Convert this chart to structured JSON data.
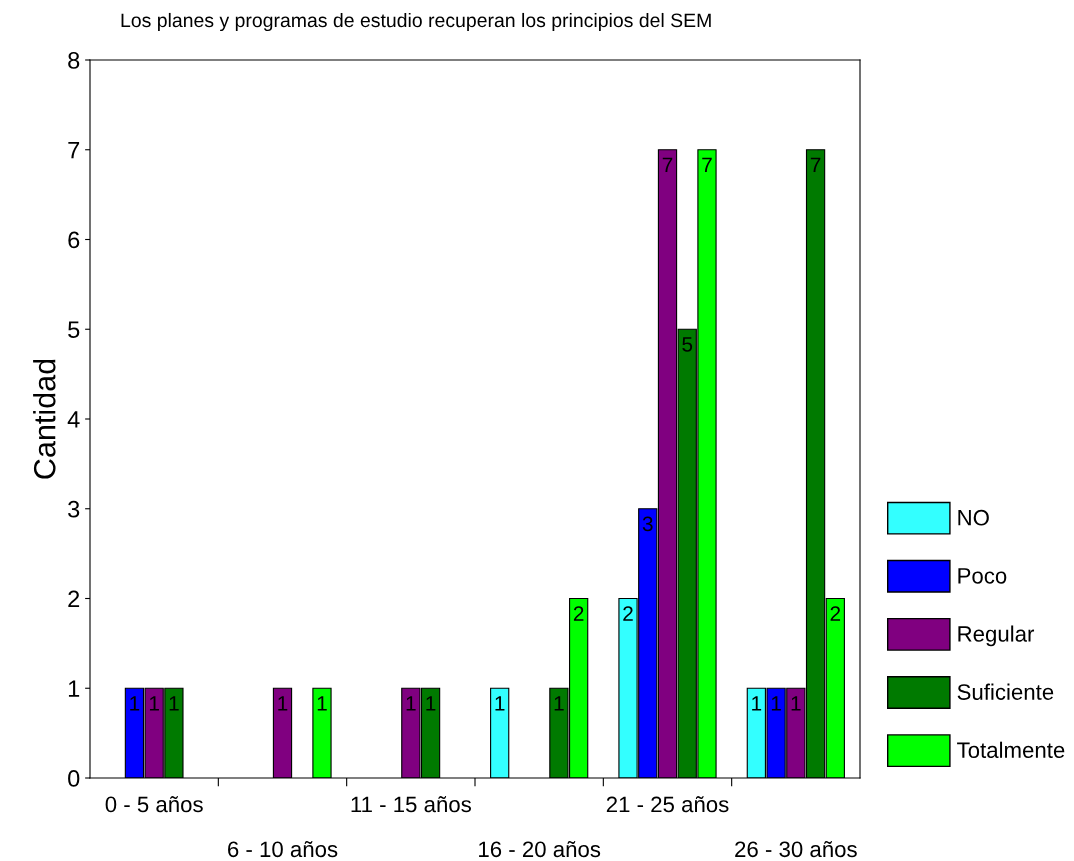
{
  "chart_data": {
    "type": "bar",
    "title": "Los planes y programas de estudio recuperan los principios del SEM",
    "ylabel": "Cantidad",
    "categories": [
      "0 - 5 años",
      "6 - 10 años",
      "11 - 15 años",
      "16 - 20 años",
      "21 - 25 años",
      "26 - 30 años"
    ],
    "series": [
      {
        "name": "NO",
        "color": "#33ffff",
        "values": [
          null,
          null,
          null,
          1,
          2,
          1
        ]
      },
      {
        "name": "Poco",
        "color": "#0000ff",
        "values": [
          1,
          null,
          null,
          null,
          3,
          1
        ]
      },
      {
        "name": "Regular",
        "color": "#800080",
        "values": [
          1,
          1,
          1,
          null,
          7,
          1
        ]
      },
      {
        "name": "Suficiente",
        "color": "#007a00",
        "values": [
          1,
          null,
          1,
          1,
          5,
          7
        ]
      },
      {
        "name": "Totalmente",
        "color": "#00ff00",
        "values": [
          null,
          1,
          null,
          2,
          7,
          2
        ]
      }
    ],
    "ylim": [
      0,
      8
    ],
    "yticks": [
      0,
      1,
      2,
      3,
      4,
      5,
      6,
      7,
      8
    ],
    "data_labels": true,
    "grid": false,
    "legend": "right"
  }
}
